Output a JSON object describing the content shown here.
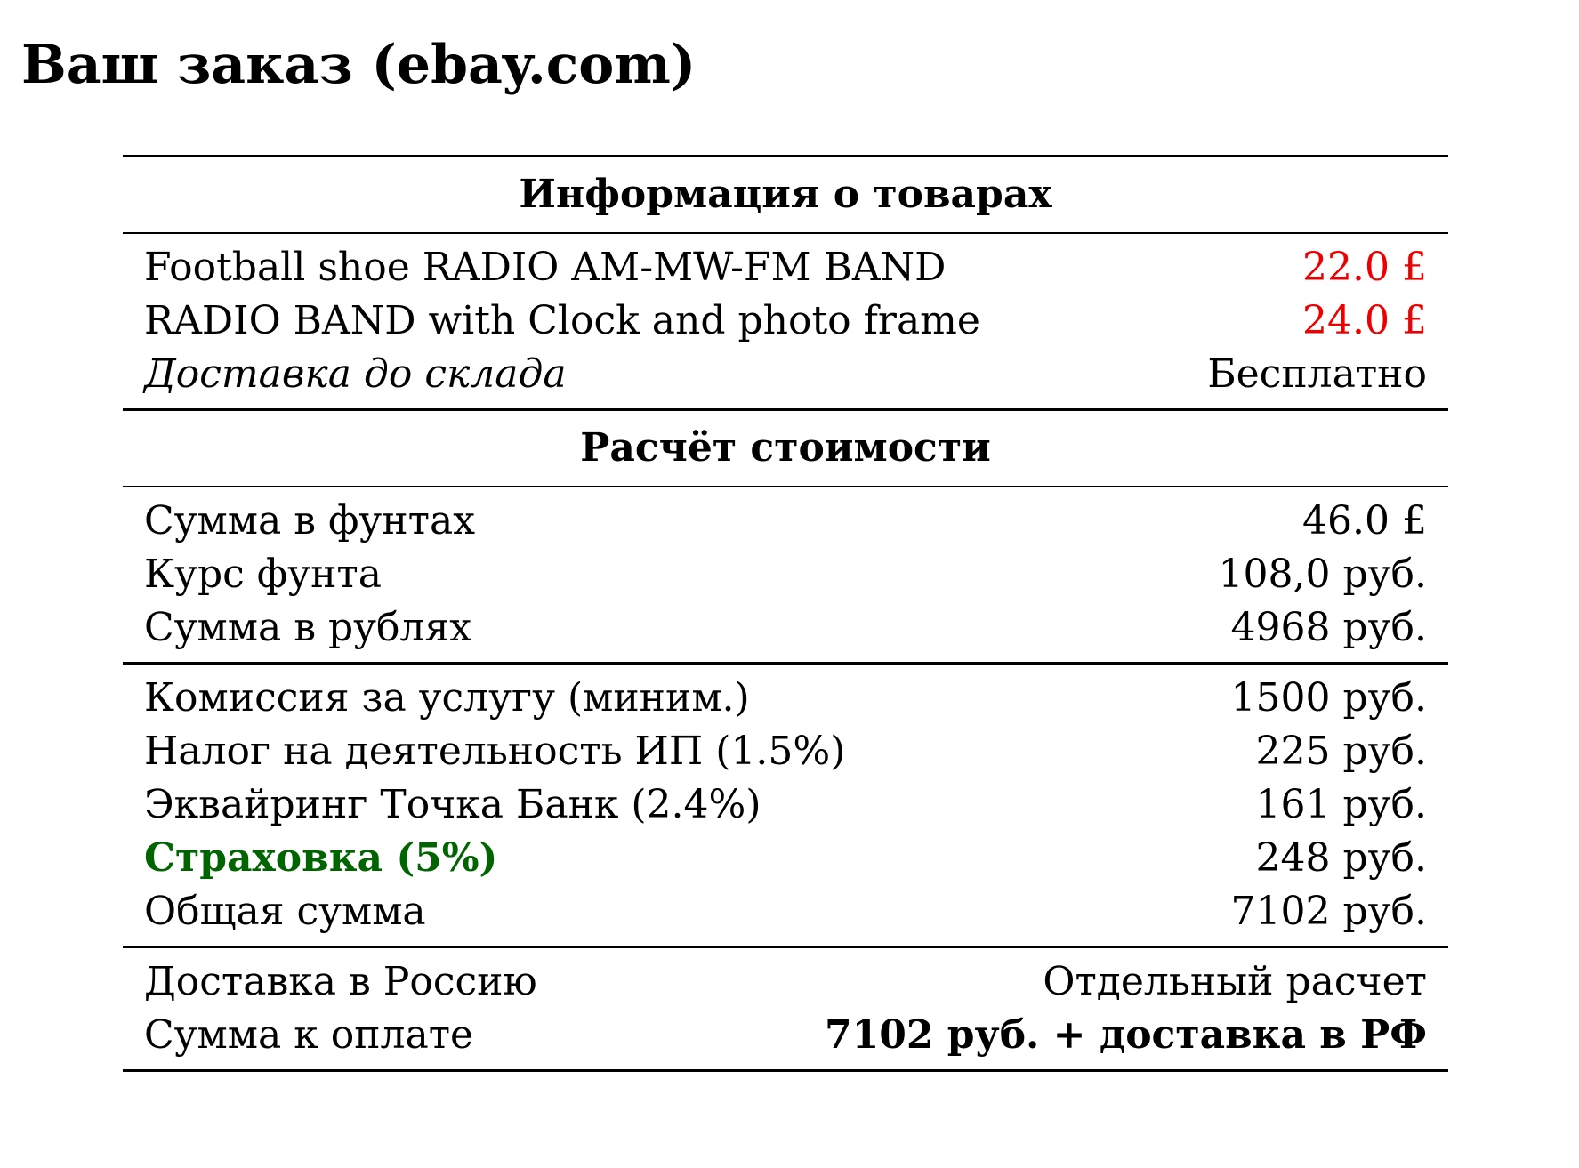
{
  "title": "Ваш заказ (ebay.com)",
  "colors": {
    "price": "#ee0000",
    "insurance": "#006400"
  },
  "items_section": {
    "heading": "Информация о товарах",
    "rows": [
      {
        "label": "Football shoe RADIO AM-MW-FM BAND",
        "value": "22.0 £"
      },
      {
        "label": "RADIO BAND with Clock and photo frame",
        "value": "24.0 £"
      },
      {
        "label": "Доставка до склада",
        "value": "Бесплатно"
      }
    ]
  },
  "cost_section": {
    "heading": "Расчёт стоимости",
    "conversion": [
      {
        "label": "Сумма в фунтах",
        "value": "46.0 £"
      },
      {
        "label": "Курс фунта",
        "value": "108,0 руб."
      },
      {
        "label": "Сумма в рублях",
        "value": "4968 руб."
      }
    ],
    "fees": [
      {
        "label": "Комиссия за услугу (миним.)",
        "value": "1500 руб."
      },
      {
        "label": "Налог на деятельность ИП (1.5%)",
        "value": "225 руб."
      },
      {
        "label": "Эквайринг Точка Банк (2.4%)",
        "value": "161 руб."
      },
      {
        "label": "Страховка (5%)",
        "value": "248 руб."
      },
      {
        "label": "Общая сумма",
        "value": "7102 руб."
      }
    ],
    "final": [
      {
        "label": "Доставка в Россию",
        "value": "Отдельный расчет"
      },
      {
        "label": "Сумма к оплате",
        "value": "7102 руб. + доставка в РФ"
      }
    ]
  }
}
